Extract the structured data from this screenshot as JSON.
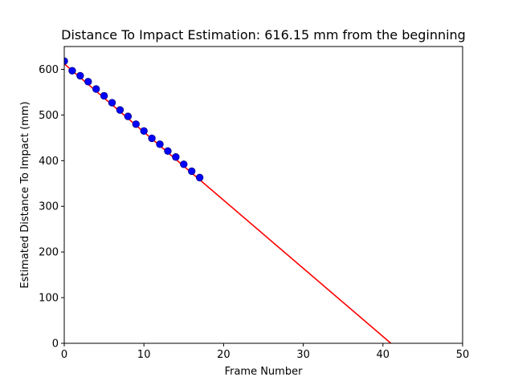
{
  "chart_data": {
    "type": "scatter",
    "title": "Distance To Impact Estimation: 616.15 mm from the beginning",
    "xlabel": "Frame Number",
    "ylabel": "Estimated Distance To Impact (mm)",
    "xlim": [
      0,
      50
    ],
    "ylim": [
      0,
      650
    ],
    "xticks": [
      0,
      10,
      20,
      30,
      40,
      50
    ],
    "yticks": [
      0,
      100,
      200,
      300,
      400,
      500,
      600
    ],
    "grid": false,
    "points": {
      "color": "#0000ff",
      "edge_color": "#000080",
      "x": [
        0,
        1,
        2,
        3,
        4,
        5,
        6,
        7,
        8,
        9,
        10,
        11,
        12,
        13,
        14,
        15,
        16,
        17
      ],
      "y": [
        618,
        597,
        586,
        573,
        557,
        542,
        527,
        511,
        497,
        480,
        465,
        449,
        436,
        421,
        408,
        392,
        377,
        363
      ]
    },
    "fit_line": {
      "color": "#ff0000",
      "x": [
        0,
        41
      ],
      "y": [
        612,
        0
      ]
    }
  }
}
